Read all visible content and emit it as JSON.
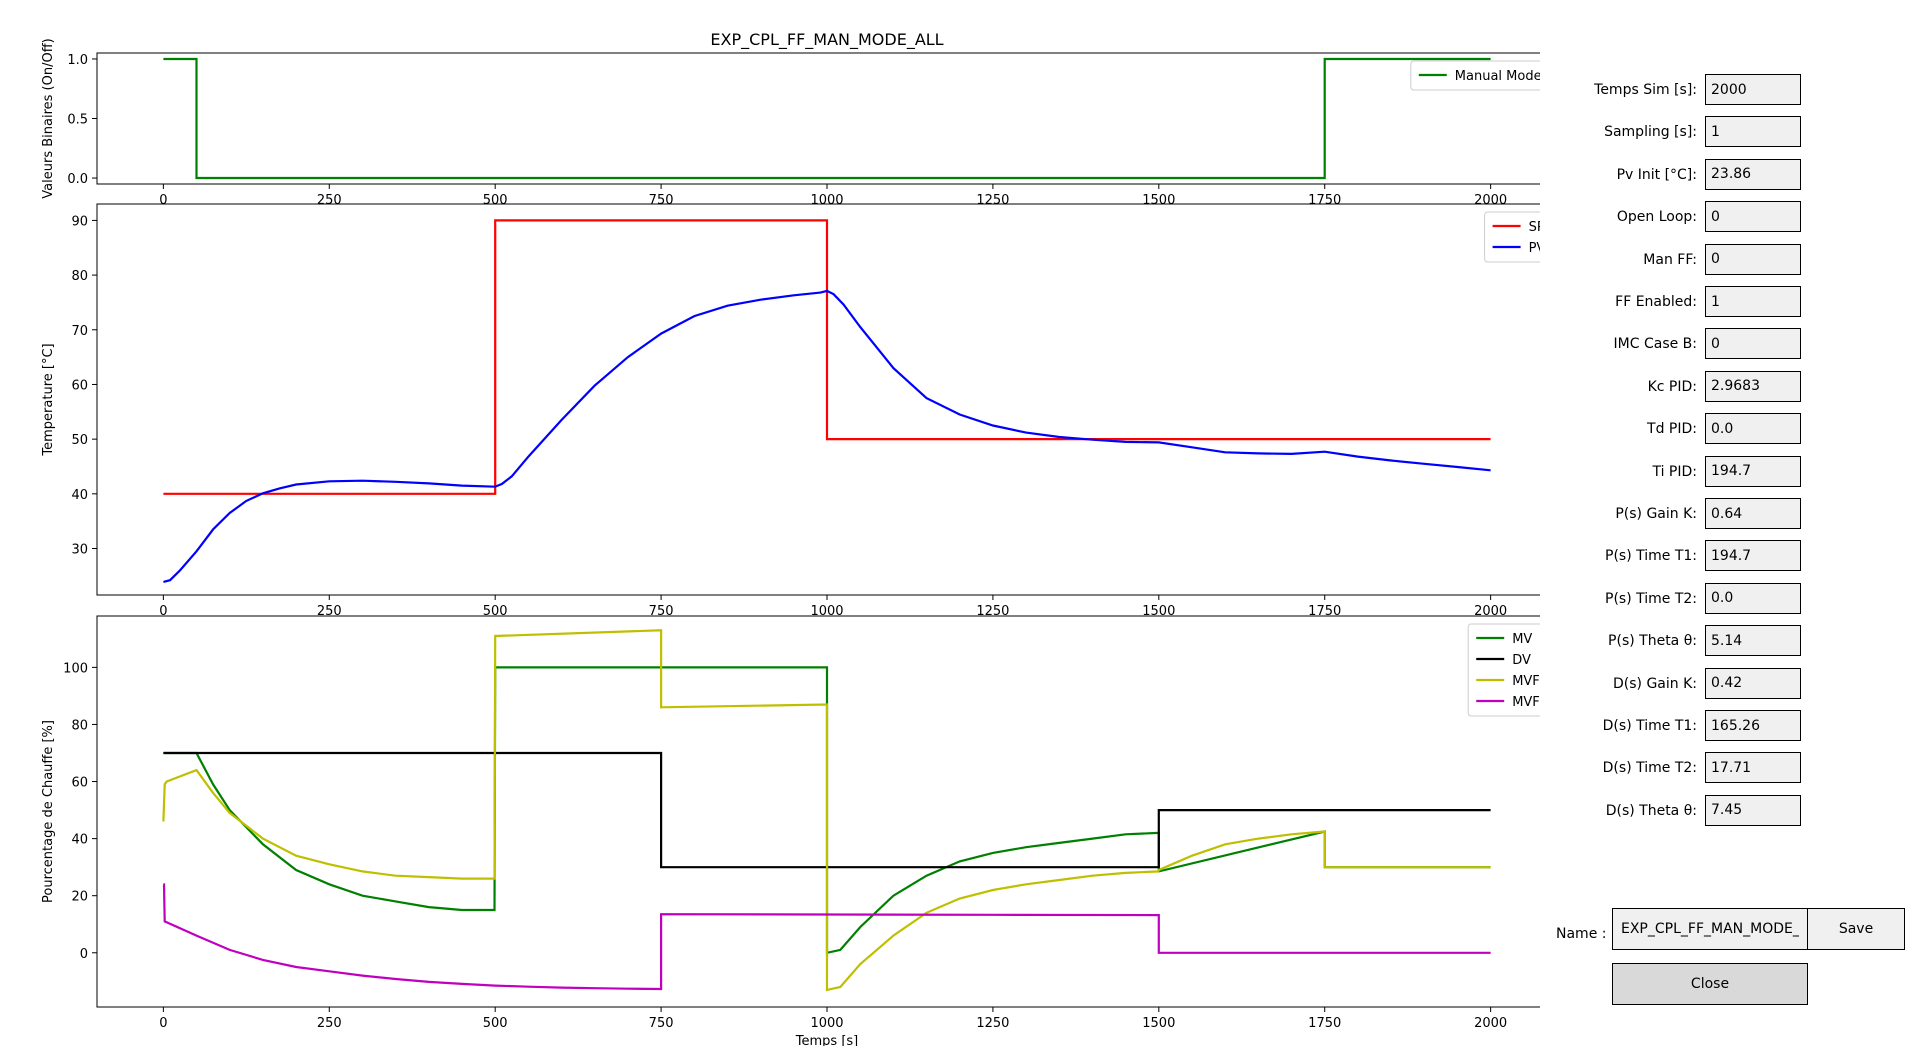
{
  "chart_data": [
    {
      "type": "line",
      "title": "EXP_CPL_FF_MAN_MODE_ALL",
      "xlabel": "",
      "ylabel": "Valeurs Binaires (On/Off)",
      "xlim": [
        -100,
        2100
      ],
      "ylim": [
        -0.05,
        1.05
      ],
      "xticks": [
        0,
        250,
        500,
        750,
        1000,
        1250,
        1500,
        1750,
        2000
      ],
      "yticks": [
        0.0,
        0.5,
        1.0
      ],
      "ytick_labels": [
        "0.0",
        "0.5",
        "1.0"
      ],
      "grid": false,
      "legend_position": "top-right",
      "series": [
        {
          "name": "Manual Mode",
          "color": "#008000",
          "x": [
            0,
            50,
            50,
            1750,
            1750,
            2000
          ],
          "y": [
            1,
            1,
            0,
            0,
            1,
            1
          ]
        }
      ]
    },
    {
      "type": "line",
      "title": "",
      "xlabel": "",
      "ylabel": "Temperature [°C]",
      "xlim": [
        -100,
        2100
      ],
      "ylim": [
        21.5,
        93
      ],
      "xticks": [
        0,
        250,
        500,
        750,
        1000,
        1250,
        1500,
        1750,
        2000
      ],
      "yticks": [
        30,
        40,
        50,
        60,
        70,
        80,
        90
      ],
      "ytick_labels": [
        "30",
        "40",
        "50",
        "60",
        "70",
        "80",
        "90"
      ],
      "grid": false,
      "legend_position": "top-right",
      "series": [
        {
          "name": "SP",
          "color": "#ff0000",
          "x": [
            0,
            500,
            500,
            1000,
            1000,
            2000
          ],
          "y": [
            40,
            40,
            90,
            90,
            50,
            50
          ]
        },
        {
          "name": "PV",
          "color": "#0000ff",
          "x": [
            0,
            10,
            25,
            50,
            75,
            100,
            125,
            150,
            175,
            200,
            250,
            300,
            350,
            400,
            450,
            500,
            510,
            525,
            550,
            600,
            650,
            700,
            750,
            800,
            850,
            900,
            950,
            990,
            1000,
            1010,
            1025,
            1050,
            1100,
            1150,
            1200,
            1250,
            1300,
            1350,
            1400,
            1450,
            1500,
            1550,
            1600,
            1650,
            1700,
            1750,
            1800,
            1850,
            1900,
            1950,
            2000
          ],
          "y": [
            23.9,
            24.2,
            26,
            29.5,
            33.5,
            36.5,
            38.7,
            40.1,
            41,
            41.7,
            42.3,
            42.4,
            42.2,
            41.9,
            41.5,
            41.3,
            41.8,
            43.2,
            46.8,
            53.5,
            59.8,
            65,
            69.3,
            72.5,
            74.4,
            75.5,
            76.3,
            76.8,
            77.1,
            76.5,
            74.6,
            70.5,
            63,
            57.5,
            54.5,
            52.5,
            51.2,
            50.4,
            49.9,
            49.5,
            49.4,
            48.5,
            47.6,
            47.4,
            47.3,
            47.7,
            46.8,
            46.1,
            45.5,
            44.9,
            44.3
          ]
        }
      ]
    },
    {
      "type": "line",
      "title": "",
      "xlabel": "Temps [s]",
      "ylabel": "Pourcentage de Chauffe [%]",
      "xlim": [
        -100,
        2100
      ],
      "ylim": [
        -19,
        118
      ],
      "xticks": [
        0,
        250,
        500,
        750,
        1000,
        1250,
        1500,
        1750,
        2000
      ],
      "yticks": [
        0,
        20,
        40,
        60,
        80,
        100
      ],
      "ytick_labels": [
        "0",
        "20",
        "40",
        "60",
        "80",
        "100"
      ],
      "grid": false,
      "legend_position": "top-right",
      "series": [
        {
          "name": "MV",
          "color": "#008000",
          "x": [
            0,
            50,
            75,
            100,
            150,
            200,
            250,
            300,
            350,
            400,
            450,
            499,
            500,
            500,
            1000,
            1000,
            1020,
            1050,
            1100,
            1150,
            1200,
            1250,
            1300,
            1350,
            1400,
            1450,
            1499,
            1500,
            1500,
            1750,
            1750,
            2000
          ],
          "y": [
            70,
            70,
            59,
            50,
            38,
            29,
            24,
            20,
            18,
            16,
            15,
            15,
            100,
            100,
            100,
            0,
            1,
            9,
            20,
            27,
            32,
            35,
            37,
            38.5,
            40,
            41.5,
            42,
            42,
            28.5,
            42.5,
            30,
            30
          ]
        },
        {
          "name": "DV",
          "color": "#000000",
          "x": [
            0,
            750,
            750,
            1500,
            1500,
            2000
          ],
          "y": [
            70,
            70,
            30,
            30,
            50,
            50
          ]
        },
        {
          "name": "MVFB",
          "color": "#bfbf00",
          "x": [
            0,
            2,
            5,
            50,
            75,
            100,
            150,
            200,
            250,
            300,
            350,
            400,
            450,
            499,
            500,
            500,
            750,
            750,
            1000,
            1000,
            1020,
            1050,
            1100,
            1150,
            1200,
            1250,
            1300,
            1350,
            1400,
            1450,
            1499,
            1500,
            1500,
            1550,
            1600,
            1650,
            1700,
            1750,
            1750,
            2000
          ],
          "y": [
            46,
            59,
            60,
            64,
            56,
            49,
            40,
            34,
            31,
            28.5,
            27,
            26.5,
            26,
            26,
            111,
            111,
            113,
            86,
            87,
            -13,
            -12,
            -4,
            6,
            14,
            19,
            22,
            24,
            25.5,
            27,
            28,
            28.5,
            29,
            29,
            34,
            38,
            40,
            41.5,
            42.5,
            30,
            30
          ]
        },
        {
          "name": "MVFF",
          "color": "#bf00bf",
          "x": [
            0,
            1,
            2,
            50,
            100,
            150,
            200,
            250,
            300,
            350,
            400,
            450,
            500,
            550,
            600,
            650,
            700,
            749,
            750,
            750,
            1000,
            1250,
            1500,
            1500,
            2000
          ],
          "y": [
            24,
            24,
            11,
            6,
            1,
            -2.5,
            -5,
            -6.5,
            -8,
            -9.2,
            -10.2,
            -10.9,
            -11.5,
            -11.9,
            -12.2,
            -12.4,
            -12.6,
            -12.7,
            -12.7,
            13.5,
            13.4,
            13.3,
            13.2,
            0,
            0
          ]
        }
      ]
    }
  ],
  "params": [
    {
      "label": "Temps Sim [s]:",
      "value": "2000"
    },
    {
      "label": "Sampling [s]:",
      "value": "1"
    },
    {
      "label": "Pv Init [°C]:",
      "value": "23.86"
    },
    {
      "label": "Open Loop:",
      "value": "0"
    },
    {
      "label": "Man FF:",
      "value": "0"
    },
    {
      "label": "FF Enabled:",
      "value": "1"
    },
    {
      "label": "IMC Case B:",
      "value": "0"
    },
    {
      "label": "Kc PID:",
      "value": "2.9683"
    },
    {
      "label": "Td PID:",
      "value": "0.0"
    },
    {
      "label": "Ti PID:",
      "value": "194.7"
    },
    {
      "label": "P(s) Gain K:",
      "value": "0.64"
    },
    {
      "label": "P(s) Time T1:",
      "value": "194.7"
    },
    {
      "label": "P(s) Time T2:",
      "value": "0.0"
    },
    {
      "label": "P(s) Theta θ:",
      "value": "5.14"
    },
    {
      "label": "D(s) Gain K:",
      "value": "0.42"
    },
    {
      "label": "D(s) Time T1:",
      "value": "165.26"
    },
    {
      "label": "D(s) Time T2:",
      "value": "17.71"
    },
    {
      "label": "D(s) Theta θ:",
      "value": "7.45"
    }
  ],
  "controls": {
    "name_label": "Name :",
    "name_value": "EXP_CPL_FF_MAN_MODE_ALL",
    "save_label": "Save",
    "close_label": "Close"
  }
}
